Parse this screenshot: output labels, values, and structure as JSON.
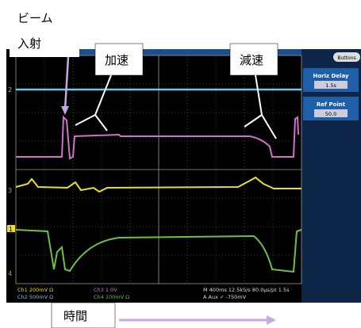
{
  "annotations": {
    "beam": [
      "ビーム",
      "入射"
    ],
    "accel": "加速",
    "decel": "減速",
    "time": "時間"
  },
  "side_panel": {
    "button": "Buttons",
    "items": [
      {
        "label": "Horiz Delay",
        "value": "1.5s"
      },
      {
        "label": "Ref Point",
        "value": "50.0"
      }
    ]
  },
  "channel_markers": [
    "2",
    "3",
    "1",
    "4"
  ],
  "status": {
    "ch1": "Ch1  200mV  Ω",
    "ch2": "Ch2  500mV  Ω",
    "ch3": "Ch3  1.0V",
    "ch4": "Ch4  100mV  Ω",
    "timebase": "M 400ms 12.5kS/s  80.0µs/pt  1.5s",
    "trigger": "A  Aux  ✓  -750mV"
  }
}
